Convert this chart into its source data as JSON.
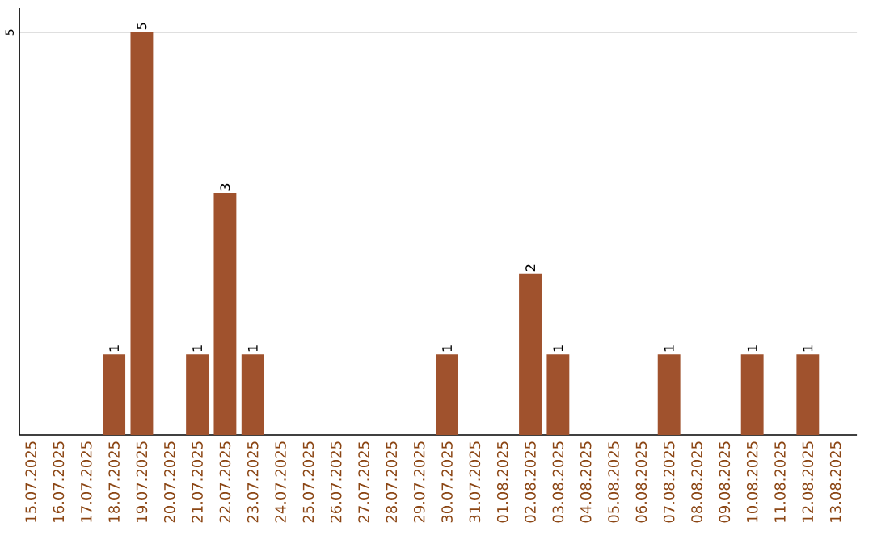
{
  "chart_data": {
    "type": "bar",
    "categories": [
      "15.07.2025",
      "16.07.2025",
      "17.07.2025",
      "18.07.2025",
      "19.07.2025",
      "20.07.2025",
      "21.07.2025",
      "22.07.2025",
      "23.07.2025",
      "24.07.2025",
      "25.07.2025",
      "26.07.2025",
      "27.07.2025",
      "28.07.2025",
      "29.07.2025",
      "30.07.2025",
      "31.07.2025",
      "01.08.2025",
      "02.08.2025",
      "03.08.2025",
      "04.08.2025",
      "05.08.2025",
      "06.08.2025",
      "07.08.2025",
      "08.08.2025",
      "09.08.2025",
      "10.08.2025",
      "11.08.2025",
      "12.08.2025",
      "13.08.2025"
    ],
    "values": [
      0,
      0,
      0,
      1,
      5,
      0,
      1,
      3,
      1,
      0,
      0,
      0,
      0,
      0,
      0,
      1,
      0,
      0,
      2,
      1,
      0,
      0,
      0,
      1,
      0,
      0,
      1,
      0,
      1,
      0
    ],
    "value_labels": [
      null,
      null,
      null,
      "1",
      "5",
      null,
      "1",
      "3",
      "1",
      null,
      null,
      null,
      null,
      null,
      null,
      "1",
      null,
      null,
      "2",
      "1",
      null,
      null,
      null,
      "1",
      null,
      null,
      "1",
      null,
      "1",
      null
    ],
    "color": "#a0522d",
    "ylim": [
      0,
      5.3
    ],
    "yticks": [
      5
    ],
    "grid": "y"
  }
}
